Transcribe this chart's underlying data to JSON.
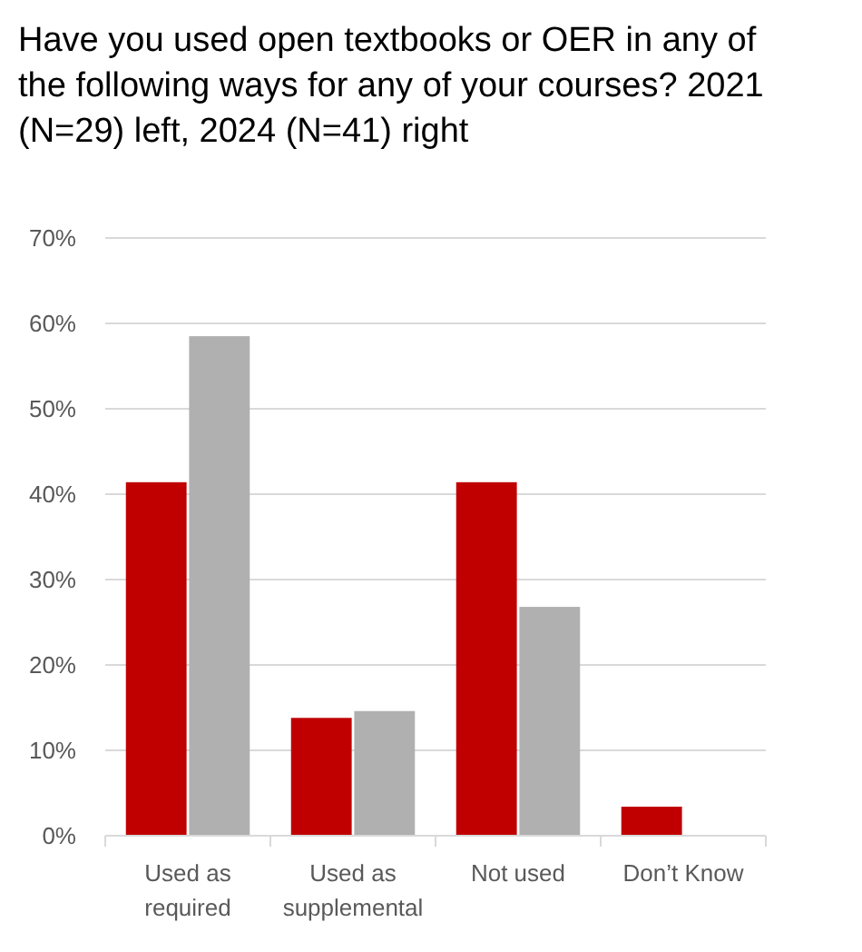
{
  "chart_data": {
    "type": "bar",
    "title": "Have you used open textbooks or OER in any of the following ways for any of your courses? 2021 (N=29) left, 2024 (N=41) right",
    "categories": [
      "Used as required",
      "Used as supplemental",
      "Not used",
      "Don’t Know"
    ],
    "series": [
      {
        "color": "#c00000",
        "values": [
          41.4,
          13.8,
          41.4,
          3.4
        ]
      },
      {
        "color": "#b0b0b0",
        "values": [
          58.5,
          14.6,
          26.8,
          0
        ]
      }
    ],
    "ylim": [
      0,
      70
    ],
    "yticks": [
      {
        "value": 0,
        "label": "0%"
      },
      {
        "value": 10,
        "label": "10%"
      },
      {
        "value": 20,
        "label": "20%"
      },
      {
        "value": 30,
        "label": "30%"
      },
      {
        "value": 40,
        "label": "40%"
      },
      {
        "value": 50,
        "label": "50%"
      },
      {
        "value": 60,
        "label": "60%"
      },
      {
        "value": 70,
        "label": "70%"
      }
    ],
    "grid": "y"
  }
}
